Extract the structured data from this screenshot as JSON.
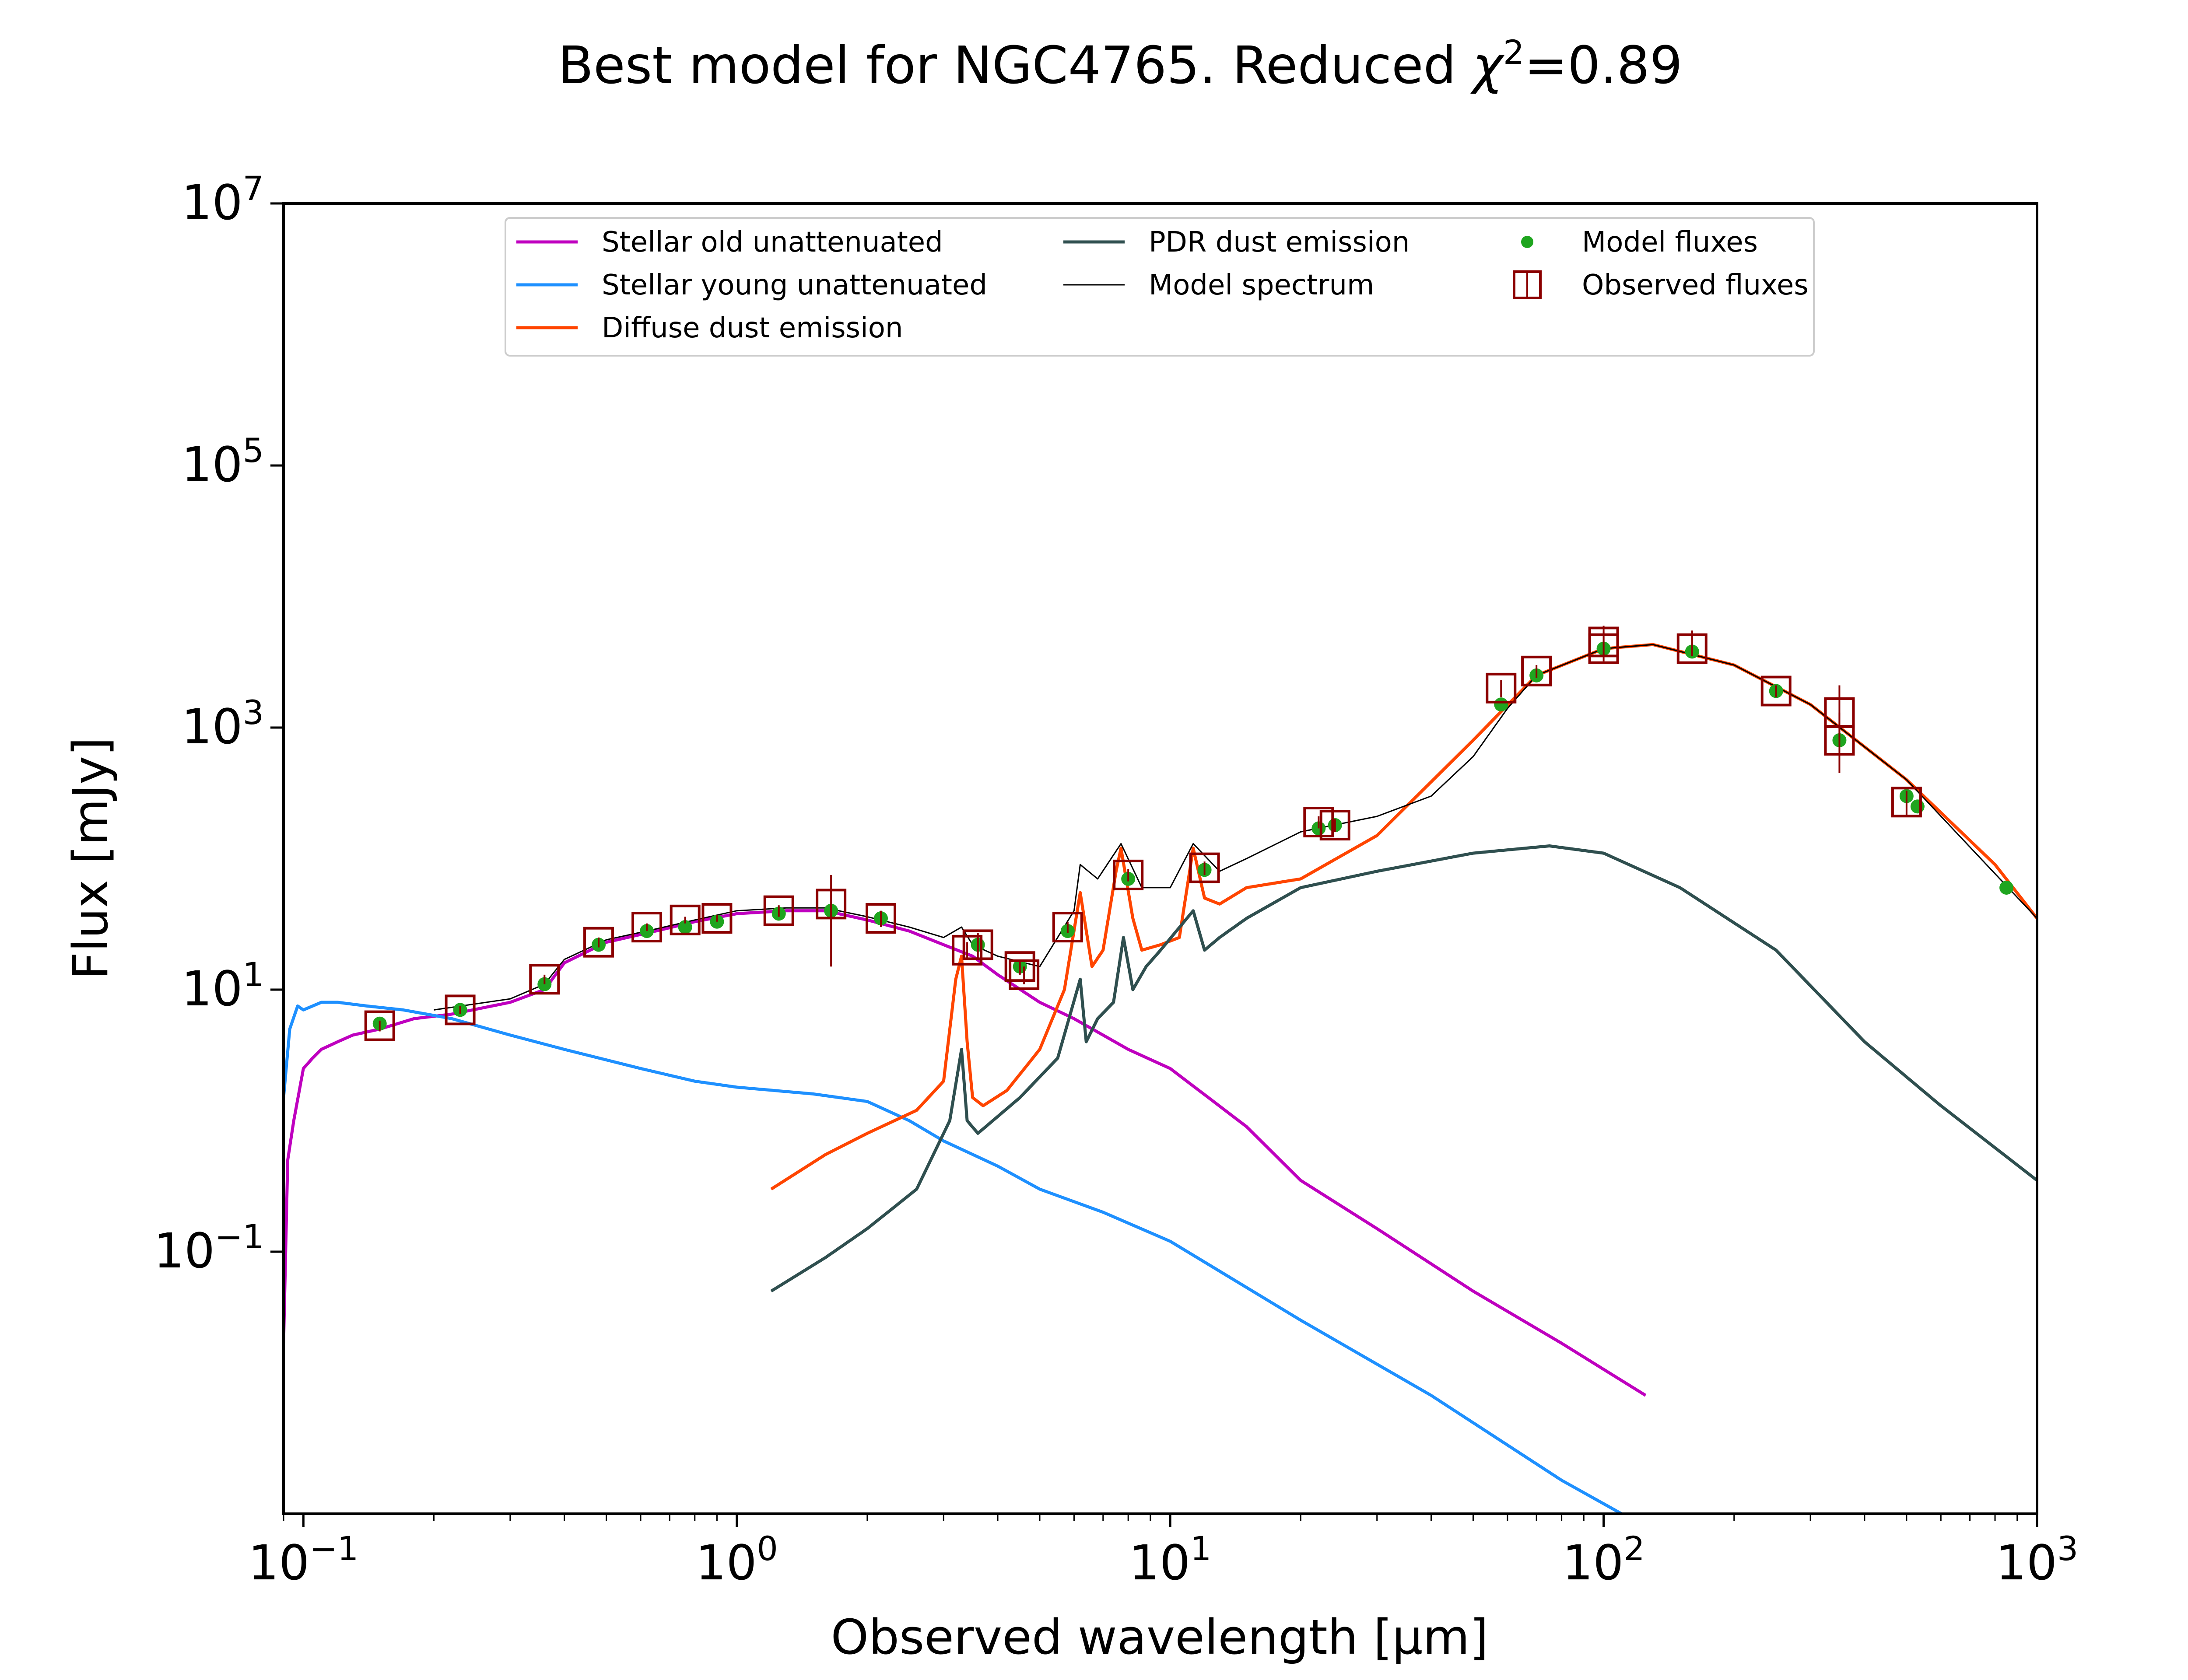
{
  "chart_data": {
    "type": "line",
    "title_prefix": "Best model for NGC4765. Reduced ",
    "title_chi": "χ",
    "title_sup": "2",
    "title_suffix": "=0.89",
    "xlabel": "Observed wavelength [μm]",
    "ylabel": "Flux [mJy]",
    "x_scale": "log",
    "y_scale": "log",
    "xlim": [
      0.09,
      1000
    ],
    "ylim": [
      0.001,
      10000000
    ],
    "x_ticks": [
      {
        "value": 0.1,
        "base": "10",
        "exp": "−1"
      },
      {
        "value": 1,
        "base": "10",
        "exp": "0"
      },
      {
        "value": 10,
        "base": "10",
        "exp": "1"
      },
      {
        "value": 100,
        "base": "10",
        "exp": "2"
      },
      {
        "value": 1000,
        "base": "10",
        "exp": "3"
      }
    ],
    "y_ticks": [
      {
        "value": 0.1,
        "base": "10",
        "exp": "−1"
      },
      {
        "value": 10,
        "base": "10",
        "exp": "1"
      },
      {
        "value": 1000,
        "base": "10",
        "exp": "3"
      },
      {
        "value": 100000,
        "base": "10",
        "exp": "5"
      },
      {
        "value": 10000000,
        "base": "10",
        "exp": "7"
      }
    ],
    "grid": false,
    "legend_position": "upper-center",
    "series": [
      {
        "name": "Stellar old unattenuated",
        "kind": "line",
        "color": "#bf00bf",
        "x": [
          0.09,
          0.092,
          0.095,
          0.1,
          0.105,
          0.11,
          0.12,
          0.13,
          0.15,
          0.18,
          0.22,
          0.3,
          0.36,
          0.4,
          0.5,
          0.65,
          0.8,
          1.0,
          1.3,
          1.6,
          2.0,
          2.5,
          3.0,
          3.5,
          4.0,
          5.0,
          6.0,
          7.0,
          8.0,
          10.0,
          15.0,
          20.0,
          30.0,
          50.0,
          80.0,
          125.0
        ],
        "y": [
          0.02,
          0.5,
          1.0,
          2.5,
          3.0,
          3.5,
          4.0,
          4.5,
          5.0,
          6.0,
          6.5,
          8.0,
          10.0,
          16.0,
          23.0,
          28.0,
          33.0,
          38.0,
          40.0,
          40.0,
          34.0,
          28.0,
          22.0,
          18.0,
          13.0,
          8.0,
          6.0,
          4.5,
          3.5,
          2.5,
          0.9,
          0.35,
          0.15,
          0.05,
          0.02,
          0.008
        ]
      },
      {
        "name": "Stellar young unattenuated",
        "kind": "line",
        "color": "#1e90ff",
        "x": [
          0.09,
          0.093,
          0.097,
          0.1,
          0.11,
          0.12,
          0.14,
          0.17,
          0.22,
          0.3,
          0.4,
          0.6,
          0.8,
          1.0,
          1.5,
          2.0,
          2.5,
          3.0,
          4.0,
          5.0,
          7.0,
          10.0,
          20.0,
          40.0,
          80.0,
          110.0
        ],
        "y": [
          1.5,
          5.0,
          7.5,
          7.0,
          8.0,
          8.0,
          7.5,
          7.0,
          6.0,
          4.5,
          3.5,
          2.5,
          2.0,
          1.8,
          1.6,
          1.4,
          1.0,
          0.7,
          0.45,
          0.3,
          0.2,
          0.12,
          0.03,
          0.008,
          0.0018,
          0.001
        ]
      },
      {
        "name": "Diffuse dust emission",
        "kind": "line",
        "color": "#ff4500",
        "x": [
          1.2,
          1.6,
          2.0,
          2.6,
          3.0,
          3.2,
          3.3,
          3.4,
          3.5,
          3.7,
          4.2,
          5.0,
          5.7,
          6.2,
          6.6,
          7.0,
          7.5,
          7.7,
          8.2,
          8.6,
          9.5,
          10.5,
          11.3,
          12.0,
          13.0,
          15.0,
          20.0,
          30.0,
          50.0,
          70.0,
          100.0,
          130.0,
          200.0,
          300.0,
          500.0,
          800.0,
          1000.0
        ],
        "y": [
          0.3,
          0.55,
          0.8,
          1.2,
          2.0,
          12.0,
          18.0,
          4.0,
          1.5,
          1.3,
          1.7,
          3.5,
          10.0,
          55.0,
          15.0,
          20.0,
          80.0,
          120.0,
          35.0,
          20.0,
          22.0,
          25.0,
          120.0,
          50.0,
          45.0,
          60.0,
          70.0,
          150.0,
          800.0,
          2500.0,
          4000.0,
          4300.0,
          3000.0,
          1500.0,
          400.0,
          90.0,
          35.0
        ]
      },
      {
        "name": "PDR dust emission",
        "kind": "line",
        "color": "#2f4f4f",
        "x": [
          1.2,
          1.6,
          2.0,
          2.6,
          3.1,
          3.3,
          3.4,
          3.6,
          4.5,
          5.5,
          6.2,
          6.4,
          6.8,
          7.4,
          7.8,
          8.2,
          8.8,
          9.5,
          11.3,
          12.0,
          13.0,
          15.0,
          20.0,
          30.0,
          50.0,
          75.0,
          100.0,
          150.0,
          250.0,
          400.0,
          600.0,
          1000.0
        ],
        "y": [
          0.05,
          0.09,
          0.15,
          0.3,
          1.0,
          3.5,
          1.0,
          0.8,
          1.5,
          3.0,
          12.0,
          4.0,
          6.0,
          8.0,
          25.0,
          10.0,
          15.0,
          20.0,
          40.0,
          20.0,
          25.0,
          35.0,
          60.0,
          80.0,
          110.0,
          125.0,
          110.0,
          60.0,
          20.0,
          4.0,
          1.3,
          0.35
        ]
      },
      {
        "name": "Model spectrum",
        "kind": "line",
        "color": "#000000",
        "x": [
          0.2,
          0.3,
          0.36,
          0.4,
          0.5,
          0.65,
          0.8,
          1.0,
          1.3,
          1.6,
          2.0,
          2.5,
          3.0,
          3.3,
          3.5,
          4.0,
          5.0,
          6.0,
          6.2,
          6.8,
          7.7,
          8.6,
          10.0,
          11.3,
          13.0,
          15.0,
          20.0,
          30.0,
          40.0,
          50.0,
          60.0,
          70.0,
          100.0,
          130.0,
          200.0,
          300.0,
          500.0,
          1000.0
        ],
        "y": [
          7.0,
          8.5,
          11.0,
          17.0,
          24.0,
          29.0,
          34.0,
          40.0,
          42.0,
          42.0,
          36.0,
          30.0,
          25.0,
          30.0,
          22.0,
          18.0,
          15.0,
          40.0,
          90.0,
          70.0,
          130.0,
          60.0,
          60.0,
          130.0,
          80.0,
          100.0,
          160.0,
          210.0,
          300.0,
          600.0,
          1400.0,
          2500.0,
          4000.0,
          4300.0,
          3000.0,
          1500.0,
          400.0,
          35.0
        ]
      },
      {
        "name": "Model fluxes",
        "kind": "scatter",
        "color": "#1fa51f",
        "x": [
          0.15,
          0.23,
          0.36,
          0.48,
          0.62,
          0.76,
          0.9,
          1.25,
          1.65,
          2.15,
          3.6,
          4.5,
          5.8,
          8.0,
          12.0,
          22.0,
          24.0,
          58.0,
          70.0,
          100.0,
          160.0,
          250.0,
          350.0,
          500.0,
          530.0,
          850.0
        ],
        "y": [
          5.5,
          7.0,
          11.0,
          22.0,
          28.0,
          30.0,
          33.0,
          38.0,
          40.0,
          35.0,
          22.0,
          15.0,
          28.0,
          70.0,
          82.0,
          170.0,
          180.0,
          1500.0,
          2500.0,
          4000.0,
          3800.0,
          1900.0,
          800.0,
          300.0,
          250.0,
          60.0
        ]
      },
      {
        "name": "Observed fluxes",
        "kind": "errorbar",
        "color": "#8b0000",
        "x": [
          0.15,
          0.23,
          0.36,
          0.48,
          0.62,
          0.76,
          0.9,
          1.25,
          1.65,
          2.15,
          3.4,
          3.6,
          4.5,
          4.6,
          5.8,
          8.0,
          12.0,
          22.0,
          24.0,
          58.0,
          70.0,
          100.0,
          100.0,
          160.0,
          250.0,
          350.0,
          350.0,
          500.0
        ],
        "y": [
          5.3,
          7.0,
          12.0,
          23.0,
          30.0,
          34.0,
          35.0,
          40.0,
          45.0,
          35.0,
          20.0,
          22.0,
          15.0,
          13.0,
          30.0,
          75.0,
          85.0,
          190.0,
          180.0,
          2000.0,
          2700.0,
          4500.0,
          4000.0,
          4000.0,
          1900.0,
          1300.0,
          800.0,
          270.0
        ],
        "yerr_low": [
          0.5,
          0.5,
          1.0,
          2.0,
          2.0,
          2.0,
          2.0,
          4.0,
          30.0,
          5.0,
          3.0,
          5.0,
          2.0,
          2.0,
          3.0,
          8.0,
          10.0,
          20.0,
          20.0,
          300.0,
          300.0,
          900.0,
          800.0,
          500.0,
          200.0,
          500.0,
          350.0,
          60.0
        ],
        "yerr_high": [
          0.5,
          0.5,
          1.0,
          2.0,
          2.0,
          2.0,
          2.0,
          4.0,
          30.0,
          5.0,
          3.0,
          5.0,
          2.0,
          2.0,
          3.0,
          8.0,
          10.0,
          20.0,
          20.0,
          300.0,
          300.0,
          900.0,
          2000.0,
          1500.0,
          200.0,
          800.0,
          500.0,
          60.0
        ]
      }
    ]
  }
}
